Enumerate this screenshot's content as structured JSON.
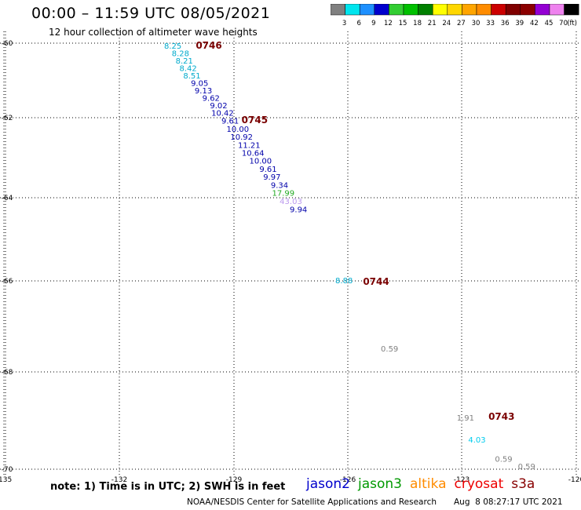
{
  "header": {
    "title": "00:00 – 11:59 UTC 08/05/2021",
    "subtitle": "12 hour collection of altimeter wave heights"
  },
  "footer": {
    "note": "note: 1) Time is in UTC; 2) SWH is in feet",
    "credit": "NOAA/NESDIS Center for Satellite Applications and Research",
    "timestamp": "Aug  8 08:27:17 UTC 2021"
  },
  "satellites": [
    {
      "name": "jason2",
      "color": "#0000cc"
    },
    {
      "name": "jason3",
      "color": "#009900"
    },
    {
      "name": "altika",
      "color": "#ff8c00"
    },
    {
      "name": "cryosat",
      "color": "#ee0000"
    },
    {
      "name": "s3a",
      "color": "#880000"
    }
  ],
  "color_scale": {
    "labels": [
      "3",
      "6",
      "9",
      "12",
      "15",
      "18",
      "21",
      "24",
      "27",
      "30",
      "33",
      "36",
      "39",
      "42",
      "45",
      "70",
      "(ft)"
    ],
    "colors": [
      "#808080",
      "#00e5ee",
      "#1e90ff",
      "#0000cd",
      "#32cd32",
      "#00c000",
      "#008000",
      "#ffff00",
      "#ffd700",
      "#ffa500",
      "#ff8c00",
      "#cc0000",
      "#800000",
      "#8b0000",
      "#9400d3",
      "#ee82ee",
      "#000000"
    ]
  },
  "chart_data": {
    "type": "scatter",
    "title": "00:00 – 11:59 UTC 08/05/2021",
    "subtitle": "12 hour collection of altimeter wave heights",
    "xlim": [
      -135,
      -120
    ],
    "ylim": [
      -70,
      -60
    ],
    "x_ticks": [
      "-135",
      "-132",
      "-129",
      "-126",
      "-123",
      "-120"
    ],
    "y_ticks": [
      "-60",
      "-62",
      "-64",
      "-66",
      "-68",
      "-70"
    ],
    "grid": true,
    "series": [
      {
        "name": "",
        "values": [
          {
            "lon": -130.6,
            "lat": -60.15,
            "label": "8.25",
            "color": "#00aacc"
          },
          {
            "lon": -130.4,
            "lat": -60.35,
            "label": "8.28",
            "color": "#00aacc"
          },
          {
            "lon": -130.3,
            "lat": -60.55,
            "label": "8.21",
            "color": "#00aacc"
          },
          {
            "lon": -130.2,
            "lat": -60.75,
            "label": "8.42",
            "color": "#00aacc"
          },
          {
            "lon": -130.1,
            "lat": -60.95,
            "label": "8.51",
            "color": "#00aacc"
          },
          {
            "lon": -129.9,
            "lat": -61.15,
            "label": "9.05",
            "color": "#0000aa"
          },
          {
            "lon": -129.8,
            "lat": -61.35,
            "label": "9.13",
            "color": "#0000aa"
          },
          {
            "lon": -129.6,
            "lat": -61.55,
            "label": "9.62",
            "color": "#0000aa"
          },
          {
            "lon": -129.4,
            "lat": -61.75,
            "label": "9.02",
            "color": "#0000aa"
          },
          {
            "lon": -129.3,
            "lat": -61.95,
            "label": "10.42",
            "color": "#0000aa"
          },
          {
            "lon": -129.1,
            "lat": -62.15,
            "label": "9.61",
            "color": "#0000aa"
          },
          {
            "lon": -128.9,
            "lat": -62.35,
            "label": "10.00",
            "color": "#0000aa"
          },
          {
            "lon": -128.8,
            "lat": -62.55,
            "label": "10.92",
            "color": "#0000aa"
          },
          {
            "lon": -128.6,
            "lat": -62.75,
            "label": "11.21",
            "color": "#0000aa"
          },
          {
            "lon": -128.5,
            "lat": -62.95,
            "label": "10.64",
            "color": "#0000aa"
          },
          {
            "lon": -128.3,
            "lat": -63.15,
            "label": "10.00",
            "color": "#0000aa"
          },
          {
            "lon": -128.1,
            "lat": -63.35,
            "label": "9.61",
            "color": "#0000aa"
          },
          {
            "lon": -128.0,
            "lat": -63.55,
            "label": "9.97",
            "color": "#0000aa"
          },
          {
            "lon": -127.8,
            "lat": -63.75,
            "label": "9.34",
            "color": "#0000aa"
          },
          {
            "lon": -127.7,
            "lat": -63.95,
            "label": "17.99",
            "color": "#22aa22"
          },
          {
            "lon": -127.5,
            "lat": -64.15,
            "label": "43.03",
            "color": "#bb99ee"
          },
          {
            "lon": -127.3,
            "lat": -64.35,
            "label": "9.94",
            "color": "#0000aa"
          },
          {
            "lon": -126.1,
            "lat": -66.05,
            "label": "8.88",
            "color": "#00aacc"
          },
          {
            "lon": -124.9,
            "lat": -67.55,
            "label": "0.59",
            "color": "#808080"
          },
          {
            "lon": -122.9,
            "lat": -69.0,
            "label": "1.91",
            "color": "#808080"
          },
          {
            "lon": -122.6,
            "lat": -69.45,
            "label": "4.03",
            "color": "#00ccee"
          },
          {
            "lon": -121.9,
            "lat": -69.85,
            "label": "0.59",
            "color": "#808080"
          },
          {
            "lon": -121.3,
            "lat": -70.05,
            "label": "0.59",
            "color": "#808080"
          }
        ]
      }
    ],
    "time_labels": [
      {
        "lon": -130.0,
        "lat": -60.1,
        "label": "0746"
      },
      {
        "lon": -128.8,
        "lat": -62.1,
        "label": "0745"
      },
      {
        "lon": -125.6,
        "lat": -66.05,
        "label": "0744"
      },
      {
        "lon": -122.3,
        "lat": -68.95,
        "label": "0743"
      }
    ]
  }
}
